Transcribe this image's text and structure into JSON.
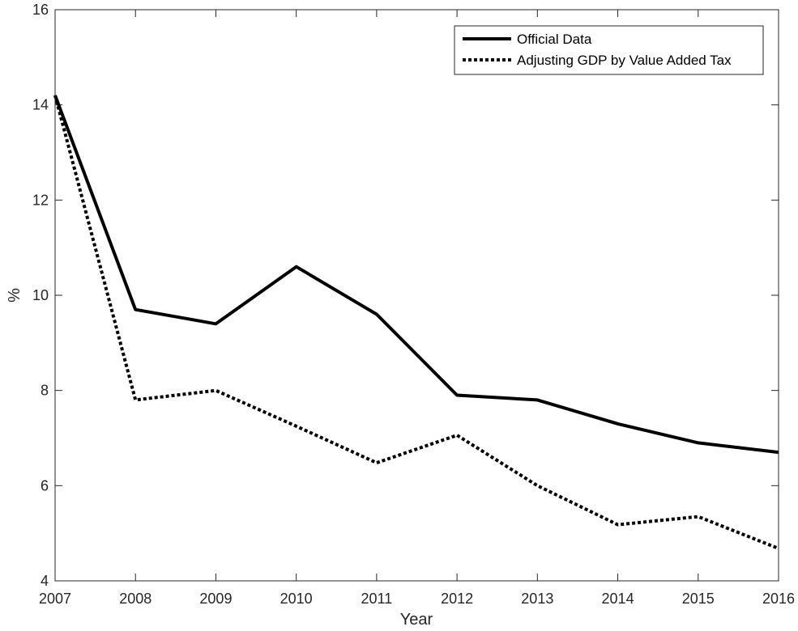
{
  "chart_data": {
    "type": "line",
    "title": "",
    "xlabel": "Year",
    "ylabel": "%",
    "x": [
      2007,
      2008,
      2009,
      2010,
      2011,
      2012,
      2013,
      2014,
      2015,
      2016
    ],
    "xlim": [
      2007,
      2016
    ],
    "ylim": [
      4,
      16
    ],
    "yticks": [
      4,
      6,
      8,
      10,
      12,
      14,
      16
    ],
    "grid": false,
    "legend_position": "top-right",
    "series": [
      {
        "name": "Official Data",
        "style": "solid",
        "color": "#000000",
        "values": [
          14.2,
          9.7,
          9.4,
          10.6,
          9.6,
          7.9,
          7.8,
          7.3,
          6.9,
          6.7
        ]
      },
      {
        "name": "Adjusting GDP by Value Added Tax",
        "style": "dotted",
        "color": "#000000",
        "values": [
          14.2,
          7.8,
          8.0,
          7.25,
          6.48,
          7.06,
          6.0,
          5.18,
          5.35,
          4.68
        ]
      }
    ]
  }
}
